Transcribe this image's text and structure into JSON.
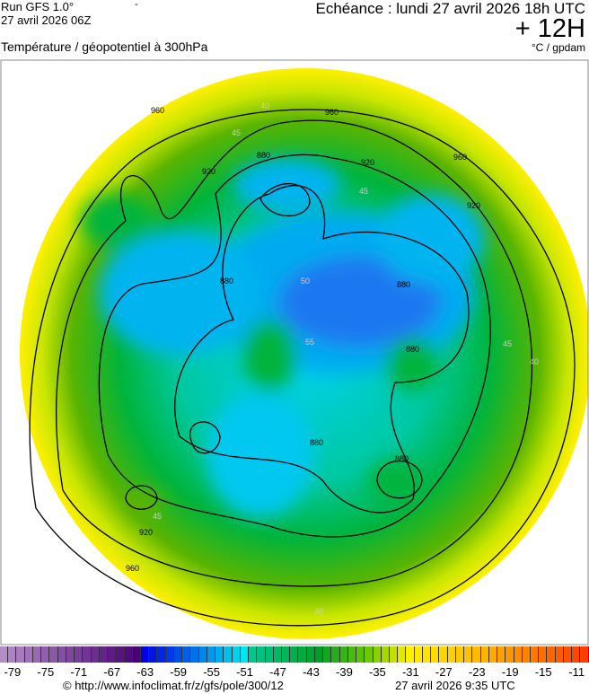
{
  "header": {
    "run": "Run GFS 1.0°",
    "run_date": "27 avril 2026 06Z",
    "dash": "-",
    "title": "Température / géopotentiel à 300hPa",
    "echeance": "Echéance : lundi 27 avril 2026 18h UTC",
    "lead": "+ 12H",
    "units": "°C / gpdam"
  },
  "map": {
    "contour_labels": [
      "960",
      "960",
      "960",
      "960",
      "920",
      "920",
      "920",
      "920",
      "880",
      "880",
      "880",
      "880",
      "880",
      "880"
    ],
    "isotherm_labels": [
      "40",
      "45",
      "45",
      "50",
      "55",
      "45",
      "40",
      "45",
      "40"
    ]
  },
  "colorbar": {
    "min": -80,
    "max": -10,
    "tick_labels": [
      "-79",
      "-75",
      "-71",
      "-67",
      "-63",
      "-59",
      "-55",
      "-51",
      "-47",
      "-43",
      "-39",
      "-35",
      "-31",
      "-27",
      "-23",
      "-19",
      "-15",
      "-11"
    ],
    "stops": [
      {
        "t": -80,
        "color": "#b48cc8"
      },
      {
        "t": -64,
        "color": "#4b0078"
      },
      {
        "t": -63,
        "color": "#0000e6"
      },
      {
        "t": -51,
        "color": "#00e6f0"
      },
      {
        "t": -50,
        "color": "#00c88c"
      },
      {
        "t": -42,
        "color": "#00a028"
      },
      {
        "t": -36,
        "color": "#6ec800"
      },
      {
        "t": -31,
        "color": "#fff000"
      },
      {
        "t": -22,
        "color": "#ffb400"
      },
      {
        "t": -10,
        "color": "#ff3c00"
      }
    ]
  },
  "footer": {
    "copyright": "© http://www.infoclimat.fr/z/gfs/pole/300/12",
    "generated": "27 avril 2026  9:35 UTC"
  }
}
